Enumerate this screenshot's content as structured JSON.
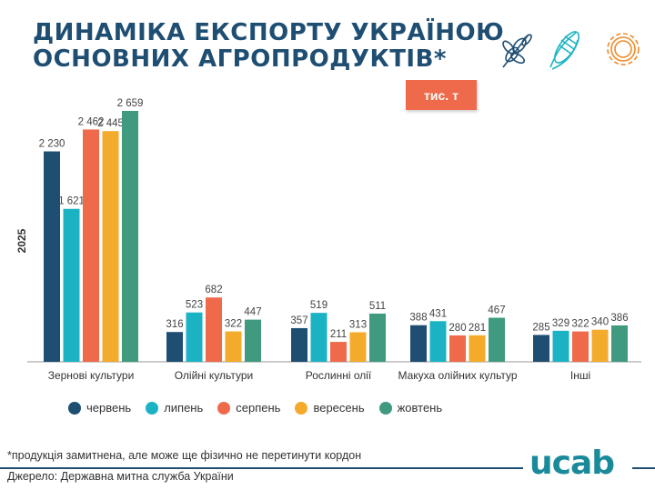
{
  "title_line1": "ДИНАМІКА ЕКСПОРТУ УКРАЇНОЮ",
  "title_line2": "ОСНОВНИХ АГРОПРОДУКТІВ*",
  "unit_badge": "тис. т",
  "icons": [
    "wheat-icon",
    "corn-icon",
    "sunflower-icon"
  ],
  "footnote": "*продукція замитнена, але може ще фізично не перетинути кордон",
  "source": "Джерело: Державна митна служба України",
  "logo": "ucab",
  "chart_data": {
    "type": "bar",
    "ylabel": "2025",
    "categories": [
      "Зернові культури",
      "Олійні культури",
      "Рослинні олії",
      "Макуха олійних культур",
      "Інші"
    ],
    "ylim": [
      0,
      2700
    ],
    "grid": false,
    "legend_placement": "bottom",
    "series": [
      {
        "name": "червень",
        "color": "#1f4e73",
        "values": [
          2230,
          316,
          357,
          388,
          285
        ]
      },
      {
        "name": "липень",
        "color": "#1bb3c4",
        "values": [
          1621,
          523,
          519,
          431,
          329
        ]
      },
      {
        "name": "серпень",
        "color": "#ee6a4a",
        "values": [
          2462,
          682,
          211,
          280,
          322
        ]
      },
      {
        "name": "вересень",
        "color": "#f4aa2a",
        "values": [
          2445,
          322,
          313,
          281,
          340
        ]
      },
      {
        "name": "жовтень",
        "color": "#3f9a80",
        "values": [
          2659,
          447,
          511,
          467,
          386
        ]
      }
    ]
  }
}
